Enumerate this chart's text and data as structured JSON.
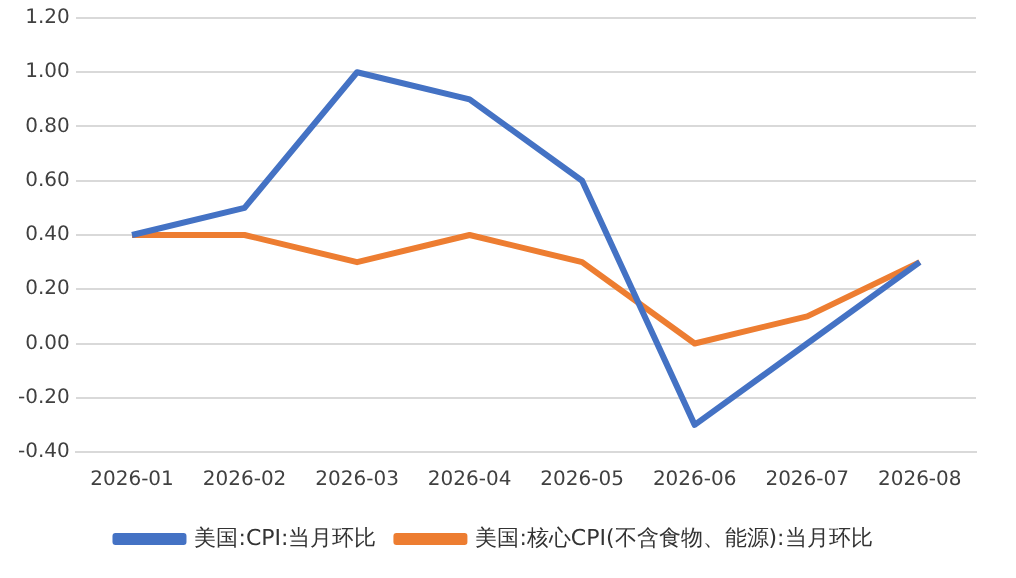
{
  "chart_data": {
    "type": "line",
    "categories": [
      "2026-01",
      "2026-02",
      "2026-03",
      "2026-04",
      "2026-05",
      "2026-06",
      "2026-07",
      "2026-08"
    ],
    "series": [
      {
        "name": "美国:CPI:当月环比",
        "color": "#4472c4",
        "values": [
          0.4,
          0.5,
          1.0,
          0.9,
          0.6,
          -0.3,
          0.0,
          0.3
        ]
      },
      {
        "name": "美国:核心CPI(不含食物、能源):当月环比",
        "color": "#ed7d31",
        "values": [
          0.4,
          0.4,
          0.3,
          0.4,
          0.3,
          0.0,
          0.1,
          0.3
        ]
      }
    ],
    "ylim": [
      -0.4,
      1.2
    ],
    "yticks": [
      {
        "value": -0.4,
        "label": "-0.40"
      },
      {
        "value": -0.2,
        "label": "-0.20"
      },
      {
        "value": 0,
        "label": "0.00"
      },
      {
        "value": 0.2,
        "label": "0.20"
      },
      {
        "value": 0.4,
        "label": "0.40"
      },
      {
        "value": 0.6,
        "label": "0.60"
      },
      {
        "value": 0.8,
        "label": "0.80"
      },
      {
        "value": 1.0,
        "label": "1.00"
      },
      {
        "value": 1.2,
        "label": "1.20"
      }
    ],
    "grid": "y",
    "legend": "bottom",
    "marker": "none",
    "line_style": "solid"
  }
}
